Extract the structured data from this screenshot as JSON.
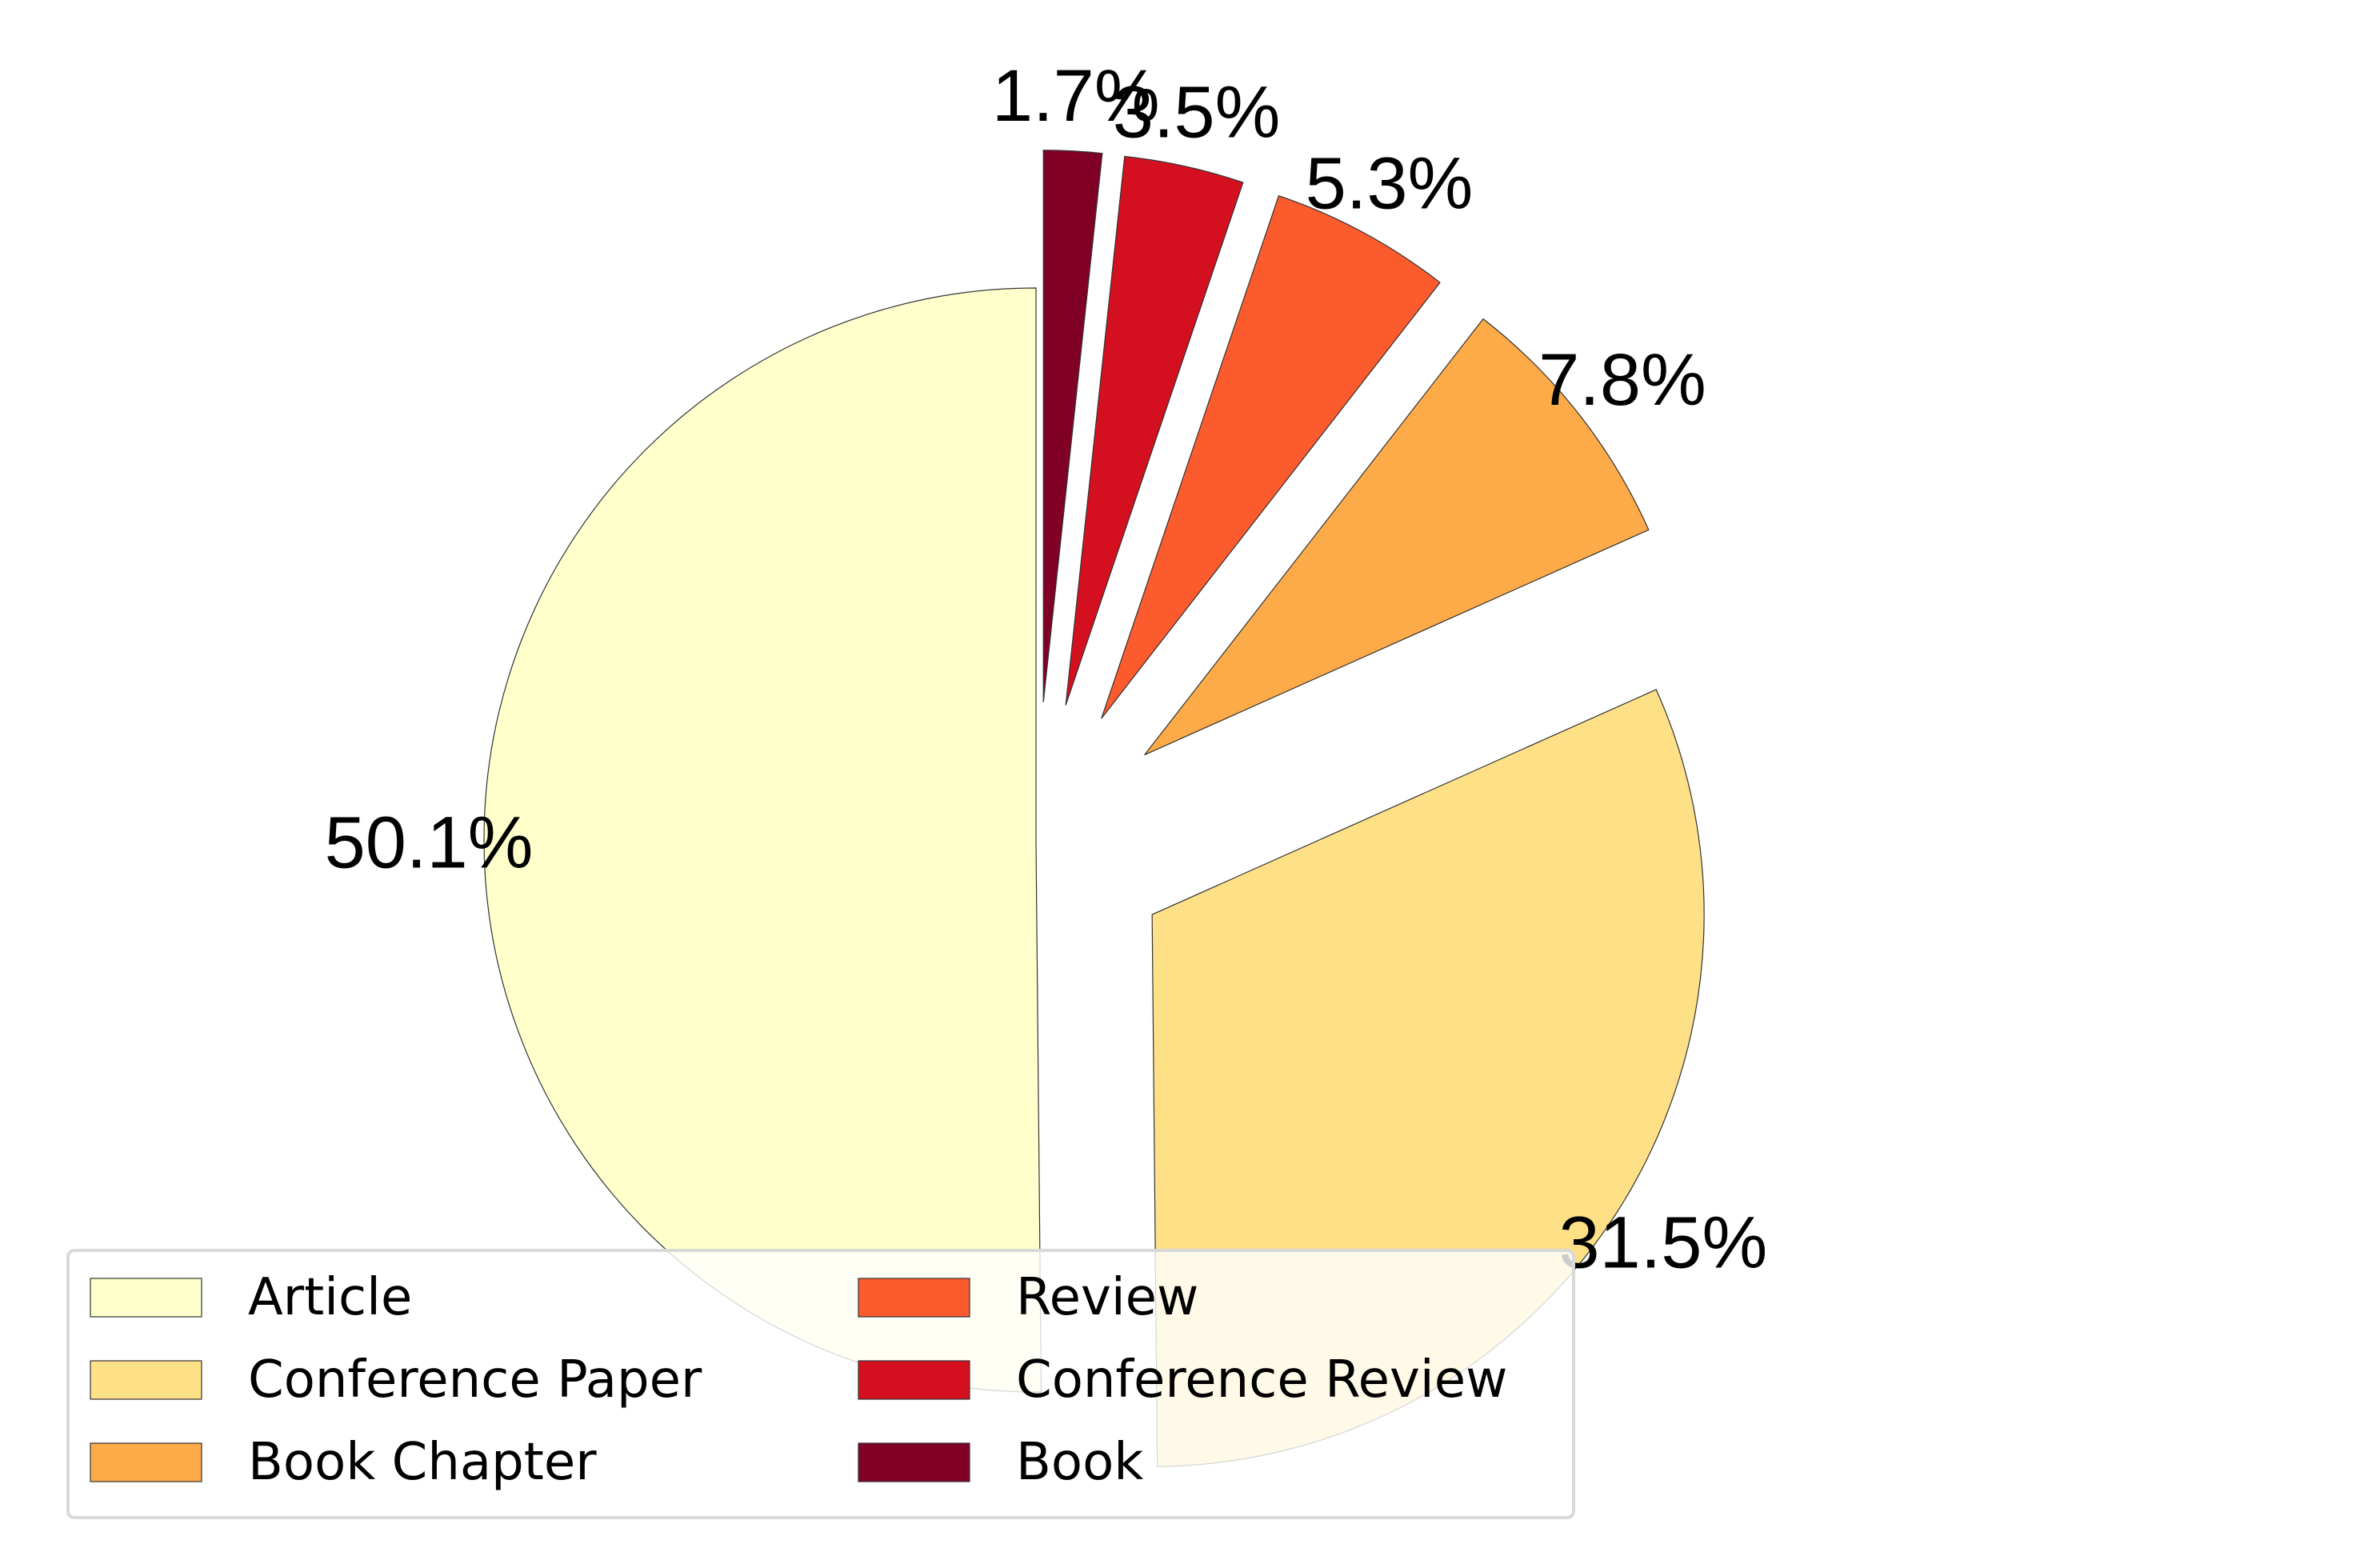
{
  "chart_data": {
    "type": "pie",
    "categories": [
      "Article",
      "Conference Paper",
      "Book Chapter",
      "Review",
      "Conference Review",
      "Book"
    ],
    "values": [
      50.1,
      31.5,
      7.8,
      5.3,
      3.5,
      1.7
    ],
    "labels": [
      "50.1%",
      "31.5%",
      "7.8%",
      "5.3%",
      "3.5%",
      "1.7%"
    ],
    "exploded": [
      false,
      true,
      true,
      true,
      true,
      true
    ],
    "start_angle_deg": 90,
    "direction": "counterclockwise",
    "colors": [
      "#ffffcc",
      "#fee087",
      "#fdaa48",
      "#fc5b2e",
      "#d41020",
      "#800026"
    ],
    "legend": {
      "placement": "lower-left",
      "columns": 2,
      "items": [
        "Article",
        "Conference Paper",
        "Book Chapter",
        "Review",
        "Conference Review",
        "Book"
      ]
    }
  }
}
